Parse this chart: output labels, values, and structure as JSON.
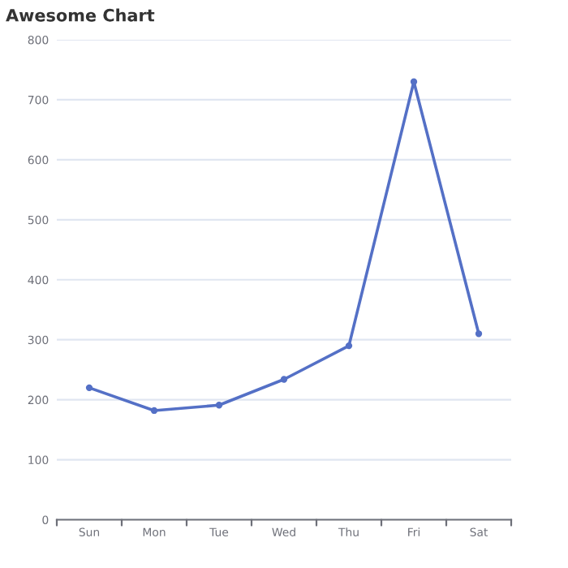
{
  "chart_data": {
    "type": "line",
    "title": "Awesome Chart",
    "categories": [
      "Sun",
      "Mon",
      "Tue",
      "Wed",
      "Thu",
      "Fri",
      "Sat"
    ],
    "series": [
      {
        "color": "#5470c6",
        "values": [
          220,
          182,
          191,
          234,
          290,
          730,
          310
        ]
      }
    ],
    "ylim": [
      0,
      800
    ],
    "yticks": [
      0,
      100,
      200,
      300,
      400,
      500,
      600,
      700,
      800
    ],
    "grid": "y",
    "marker": "circle",
    "line_style": "solid"
  }
}
